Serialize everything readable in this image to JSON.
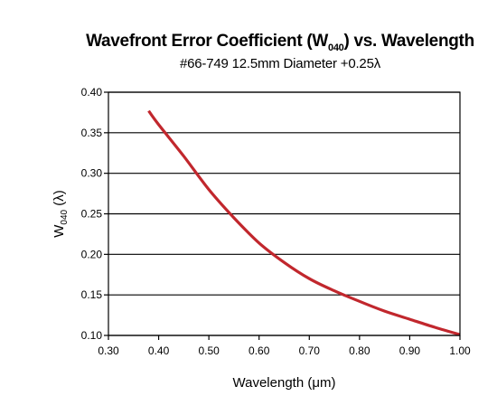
{
  "chart_data": {
    "type": "line",
    "title": {
      "main_before": "Wavefront Error Coefficient (W",
      "main_sub": "040",
      "main_after": ") vs. Wavelength"
    },
    "subtitle": "#66-749 12.5mm Diameter +0.25λ",
    "xlabel": "Wavelength (μm)",
    "ylabel": {
      "main": "W",
      "sub": "040",
      "after": " (λ)"
    },
    "xlim": [
      0.3,
      1.0
    ],
    "ylim": [
      0.1,
      0.4
    ],
    "x_ticks": [
      "0.30",
      "0.40",
      "0.50",
      "0.60",
      "0.70",
      "0.80",
      "0.90",
      "1.00"
    ],
    "y_ticks": [
      "0.10",
      "0.15",
      "0.20",
      "0.25",
      "0.30",
      "0.35",
      "0.40"
    ],
    "grid": "horizontal",
    "series": [
      {
        "color": "#c1272d",
        "x": [
          0.38,
          0.4,
          0.45,
          0.5,
          0.55,
          0.6,
          0.65,
          0.7,
          0.75,
          0.8,
          0.85,
          0.9,
          0.95,
          1.0
        ],
        "y": [
          0.377,
          0.36,
          0.321,
          0.28,
          0.245,
          0.214,
          0.19,
          0.17,
          0.155,
          0.142,
          0.13,
          0.12,
          0.11,
          0.101
        ]
      }
    ]
  }
}
